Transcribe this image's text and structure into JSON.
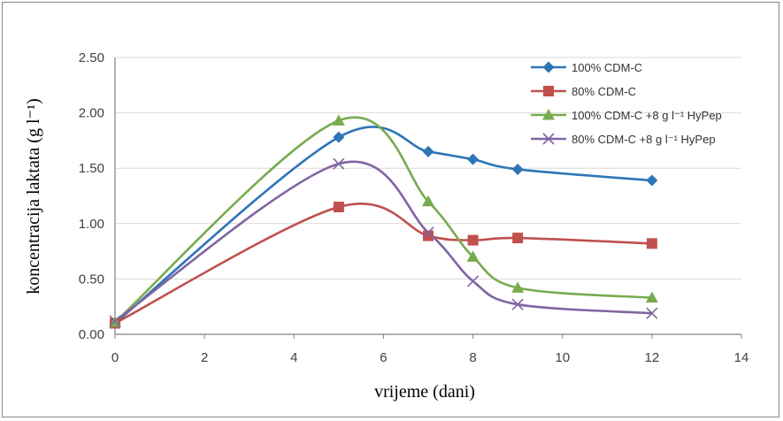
{
  "chart_data": {
    "type": "line",
    "xlabel": "vrijeme (dani)",
    "ylabel": "koncentracija laktata (g l⁻¹)",
    "xlim": [
      0,
      14
    ],
    "ylim": [
      0,
      2.5
    ],
    "x_ticks": [
      "0",
      "2",
      "4",
      "6",
      "8",
      "10",
      "12",
      "14"
    ],
    "y_ticks": [
      "0.00",
      "0.50",
      "1.00",
      "1.50",
      "2.00",
      "2.50"
    ],
    "grid": "horizontal",
    "legend_position": "top-right",
    "x": [
      0,
      5,
      7,
      8,
      9,
      12
    ],
    "series": [
      {
        "name": "100% CDM-C",
        "color": "#2e75b6",
        "marker": "diamond",
        "values": [
          0.1,
          1.78,
          1.65,
          1.58,
          1.49,
          1.39
        ]
      },
      {
        "name": "80% CDM-C",
        "color": "#c0504d",
        "marker": "square",
        "values": [
          0.1,
          1.15,
          0.89,
          0.85,
          0.87,
          0.82
        ]
      },
      {
        "name": "100% CDM-C +8 g l⁻¹ HyPep",
        "color": "#77ab4f",
        "marker": "triangle",
        "values": [
          0.11,
          1.93,
          1.2,
          0.7,
          0.42,
          0.33
        ]
      },
      {
        "name": "80% CDM-C +8 g l⁻¹ HyPep",
        "color": "#8064a2",
        "marker": "x",
        "values": [
          0.12,
          1.54,
          0.92,
          0.48,
          0.27,
          0.19
        ]
      }
    ]
  }
}
